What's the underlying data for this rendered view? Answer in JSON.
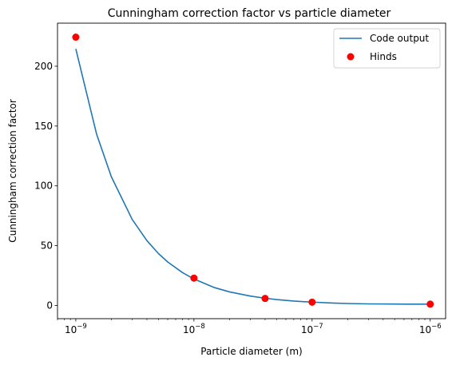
{
  "chart_data": {
    "type": "line",
    "title": "Cunningham correction factor vs particle diameter",
    "xlabel": "Particle diameter (m)",
    "ylabel": "Cunningham correction factor",
    "xscale": "log",
    "xlim": [
      7e-10,
      1.35e-06
    ],
    "ylim": [
      -11,
      236
    ],
    "grid": false,
    "legend_position": "top-right",
    "x_ticks": [
      {
        "base": "10",
        "exp": "−9",
        "value": 1e-09
      },
      {
        "base": "10",
        "exp": "−8",
        "value": 1e-08
      },
      {
        "base": "10",
        "exp": "−7",
        "value": 1e-07
      },
      {
        "base": "10",
        "exp": "−6",
        "value": 1e-06
      }
    ],
    "y_ticks": [
      {
        "label": "0",
        "value": 0
      },
      {
        "label": "50",
        "value": 50
      },
      {
        "label": "100",
        "value": 100
      },
      {
        "label": "150",
        "value": 150
      },
      {
        "label": "200",
        "value": 200
      }
    ],
    "series": [
      {
        "name": "Code output",
        "kind": "line",
        "color": "#1f77b4",
        "x": [
          1e-09,
          1.5e-09,
          2e-09,
          3e-09,
          4e-09,
          5e-09,
          6e-09,
          8e-09,
          1e-08,
          1.5e-08,
          2e-08,
          3e-08,
          4e-08,
          5e-08,
          7e-08,
          1e-07,
          1.5e-07,
          2e-07,
          3e-07,
          5e-07,
          7e-07,
          1e-06
        ],
        "y": [
          214.5,
          143.2,
          107.6,
          72.0,
          54.2,
          43.5,
          36.4,
          27.5,
          22.2,
          14.9,
          11.4,
          7.9,
          6.1,
          5.0,
          3.7,
          2.85,
          2.07,
          1.69,
          1.36,
          1.21,
          1.14,
          1.16
        ]
      },
      {
        "name": "Hinds",
        "kind": "scatter",
        "color": "#ff0000",
        "x": [
          1e-09,
          1e-08,
          4e-08,
          1e-07,
          1e-06
        ],
        "y": [
          224.3,
          22.9,
          5.9,
          2.8,
          1.16
        ]
      }
    ]
  }
}
